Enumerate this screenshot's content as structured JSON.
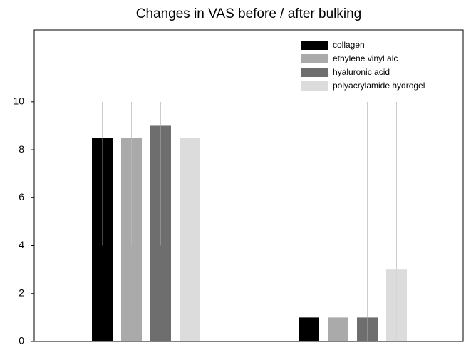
{
  "chart_data": {
    "type": "bar",
    "title": "Changes in VAS before / after bulking",
    "categories": [
      null,
      null
    ],
    "series": [
      {
        "name": "collagen",
        "color": "#000000",
        "values": [
          8.5,
          1
        ],
        "min": [
          4,
          0
        ],
        "max": [
          10,
          10
        ]
      },
      {
        "name": "ethylene vinyl alc",
        "color": "#aaaaaa",
        "values": [
          8.5,
          1
        ],
        "min": [
          4,
          0
        ],
        "max": [
          10,
          10
        ]
      },
      {
        "name": "hyaluronic acid",
        "color": "#6e6e6e",
        "values": [
          9,
          1
        ],
        "min": [
          4,
          0
        ],
        "max": [
          10,
          10
        ]
      },
      {
        "name": "polyacrylamide hydrogel",
        "color": "#dcdcdc",
        "values": [
          8.5,
          3
        ],
        "min": [
          4,
          0
        ],
        "max": [
          10,
          10
        ]
      }
    ],
    "errorbar_color": "#cccccc",
    "ylim": [
      0,
      13
    ],
    "yticks": [
      0,
      2,
      4,
      6,
      8,
      10
    ],
    "grid": false,
    "legend": "upper right"
  }
}
